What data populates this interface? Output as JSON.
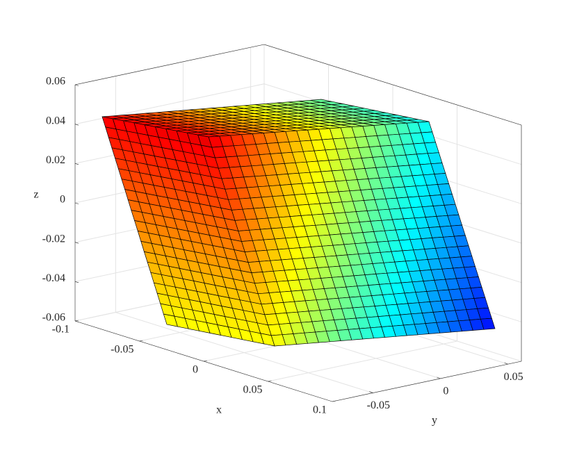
{
  "chart_data": {
    "type": "surface3d",
    "xlabel": "x",
    "ylabel": "y",
    "zlabel": "z",
    "xlim": [
      -0.1,
      0.1
    ],
    "ylim": [
      -0.08,
      0.06
    ],
    "zlim": [
      -0.06,
      0.06
    ],
    "xticks": [
      -0.1,
      -0.05,
      0,
      0.05,
      0.1
    ],
    "yticks": [
      -0.05,
      0,
      0.05
    ],
    "zticks": [
      -0.06,
      -0.04,
      -0.02,
      0,
      0.02,
      0.04,
      0.06
    ],
    "grid": true,
    "colormap": "jet"
  }
}
